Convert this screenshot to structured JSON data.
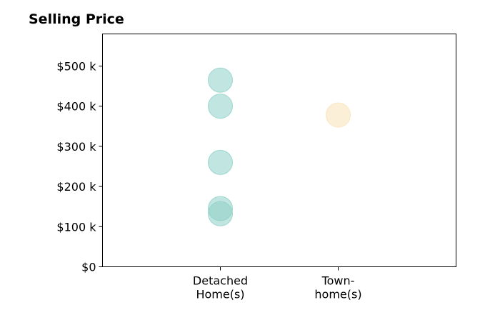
{
  "chart_data": {
    "type": "scatter",
    "title": "Selling Price",
    "xlabel": "",
    "ylabel": "",
    "categories": [
      {
        "lines": [
          "Detached",
          "Home(s)"
        ]
      },
      {
        "lines": [
          "Town-",
          "home(s)"
        ]
      }
    ],
    "x_range": [
      -1,
      2
    ],
    "ylim": [
      0,
      580
    ],
    "yticks": [
      {
        "value": 0,
        "label": "$0"
      },
      {
        "value": 100,
        "label": "$100 k"
      },
      {
        "value": 200,
        "label": "$200 k"
      },
      {
        "value": 300,
        "label": "$300 k"
      },
      {
        "value": 400,
        "label": "$400 k"
      },
      {
        "value": 500,
        "label": "$500 k"
      }
    ],
    "series": [
      {
        "category_index": 0,
        "color": "#8ecfc6",
        "values": [
          465,
          400,
          260,
          145,
          132
        ]
      },
      {
        "category_index": 1,
        "color": "#f7e2b7",
        "values": [
          378
        ]
      }
    ],
    "grid": false,
    "legend": "none"
  }
}
